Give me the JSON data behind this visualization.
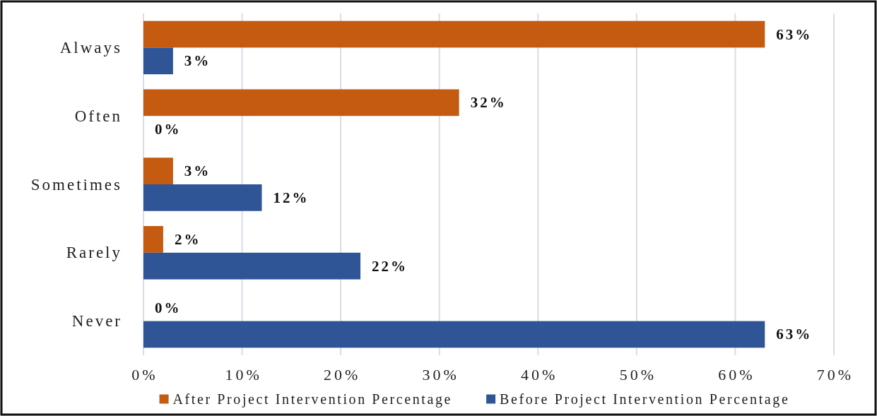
{
  "chart_data": {
    "type": "bar",
    "orientation": "horizontal",
    "categories": [
      "Always",
      "Often",
      "Sometimes",
      "Rarely",
      "Never"
    ],
    "series": [
      {
        "name": "After Project Intervention Percentage",
        "color": "#c55a11",
        "values": [
          63,
          32,
          3,
          2,
          0
        ],
        "value_labels": [
          "63%",
          "32%",
          "3%",
          "2%",
          "0%"
        ]
      },
      {
        "name": "Before Project Intervention Percentage",
        "color": "#2f5597",
        "values": [
          3,
          0,
          12,
          22,
          63
        ],
        "value_labels": [
          "3%",
          "0%",
          "12%",
          "22%",
          "63%"
        ]
      }
    ],
    "xlim": [
      0,
      70
    ],
    "xticks": [
      {
        "value": 0,
        "label": "0%"
      },
      {
        "value": 10,
        "label": "10%"
      },
      {
        "value": 20,
        "label": "20%"
      },
      {
        "value": 30,
        "label": "30%"
      },
      {
        "value": 40,
        "label": "40%"
      },
      {
        "value": 50,
        "label": "50%"
      },
      {
        "value": 60,
        "label": "60%"
      },
      {
        "value": 70,
        "label": "70%"
      }
    ],
    "grid": "x",
    "legend": "bottom"
  }
}
